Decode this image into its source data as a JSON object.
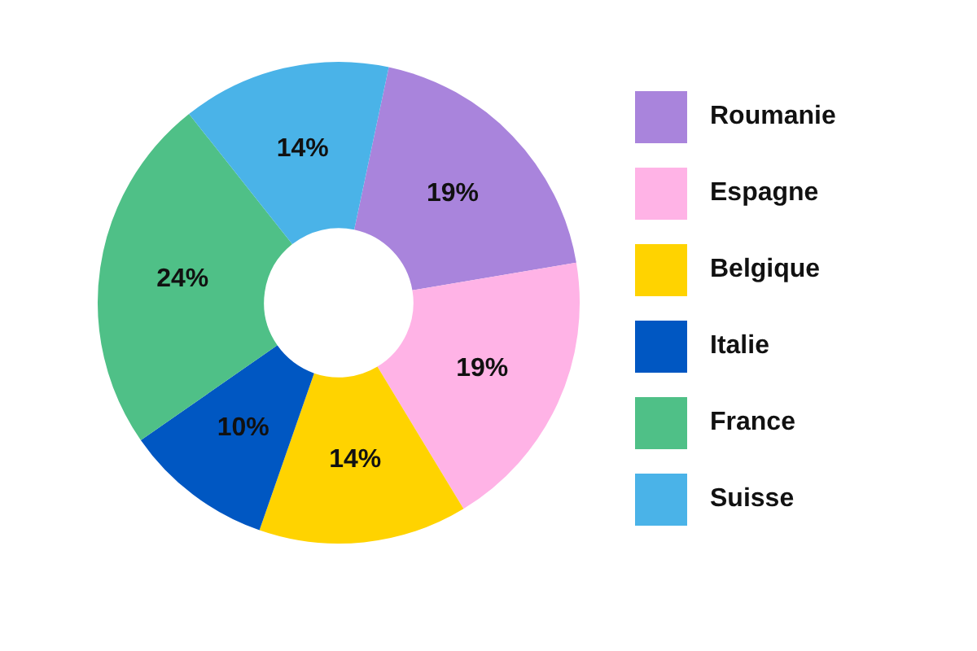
{
  "chart_data": {
    "type": "donut",
    "categories": [
      "Roumanie",
      "Espagne",
      "Belgique",
      "Italie",
      "France",
      "Suisse"
    ],
    "values": [
      19,
      19,
      14,
      10,
      24,
      14
    ],
    "value_labels": [
      "19%",
      "19%",
      "14%",
      "10%",
      "24%",
      "14%"
    ],
    "colors": [
      "#a984dc",
      "#ffb3e6",
      "#ffd300",
      "#0057c2",
      "#4fc087",
      "#4ab3e8"
    ],
    "legend": "right"
  }
}
